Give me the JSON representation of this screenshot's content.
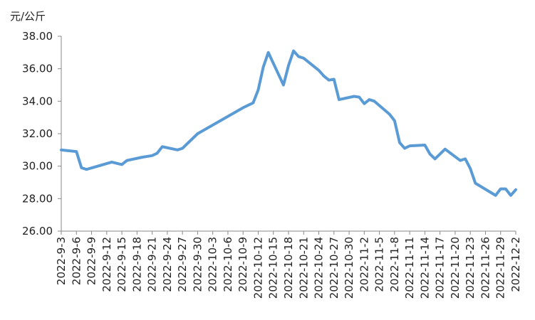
{
  "chart_data": {
    "type": "line",
    "y_label": "元/公斤",
    "x": [
      "2022-9-3",
      "2022-9-6",
      "2022-9-7",
      "2022-9-8",
      "2022-9-13",
      "2022-9-15",
      "2022-9-16",
      "2022-9-19",
      "2022-9-21",
      "2022-9-22",
      "2022-9-23",
      "2022-9-26",
      "2022-9-27",
      "2022-9-30",
      "2022-10-9",
      "2022-10-11",
      "2022-10-12",
      "2022-10-13",
      "2022-10-14",
      "2022-10-17",
      "2022-10-18",
      "2022-10-19",
      "2022-10-20",
      "2022-10-21",
      "2022-10-24",
      "2022-10-25",
      "2022-10-26",
      "2022-10-27",
      "2022-10-28",
      "2022-10-31",
      "2022-11-1",
      "2022-11-2",
      "2022-11-3",
      "2022-11-4",
      "2022-11-7",
      "2022-11-8",
      "2022-11-9",
      "2022-11-10",
      "2022-11-11",
      "2022-11-14",
      "2022-11-15",
      "2022-11-16",
      "2022-11-18",
      "2022-11-21",
      "2022-11-22",
      "2022-11-23",
      "2022-11-24",
      "2022-11-28",
      "2022-11-29",
      "2022-11-30",
      "2022-12-1",
      "2022-12-2"
    ],
    "series": [
      {
        "color": "#5b9bd5",
        "values": [
          31.0,
          30.9,
          29.9,
          29.8,
          30.25,
          30.1,
          30.35,
          30.55,
          30.65,
          30.8,
          31.2,
          31.0,
          31.1,
          32.0,
          33.6,
          33.9,
          34.7,
          36.1,
          37.0,
          35.0,
          36.2,
          37.1,
          36.75,
          36.65,
          35.9,
          35.55,
          35.3,
          35.35,
          34.1,
          34.3,
          34.25,
          33.85,
          34.1,
          34.0,
          33.2,
          32.8,
          31.45,
          31.1,
          31.25,
          31.3,
          30.75,
          30.45,
          31.05,
          30.35,
          30.45,
          29.85,
          28.95,
          28.2,
          28.6,
          28.6,
          28.2,
          28.55
        ]
      }
    ],
    "ylim": [
      26,
      38
    ],
    "yticks": [
      {
        "value": 26,
        "label": "26.00"
      },
      {
        "value": 28,
        "label": "28.00"
      },
      {
        "value": 30,
        "label": "30.00"
      },
      {
        "value": 32,
        "label": "32.00"
      },
      {
        "value": 34,
        "label": "34.00"
      },
      {
        "value": 36,
        "label": "36.00"
      },
      {
        "value": 38,
        "label": "38.00"
      }
    ],
    "xlim": [
      "2022-9-3",
      "2022-12-2"
    ],
    "xticks": [
      "2022-9-3",
      "2022-9-6",
      "2022-9-9",
      "2022-9-12",
      "2022-9-15",
      "2022-9-18",
      "2022-9-21",
      "2022-9-24",
      "2022-9-27",
      "2022-9-30",
      "2022-10-3",
      "2022-10-6",
      "2022-10-9",
      "2022-10-12",
      "2022-10-15",
      "2022-10-18",
      "2022-10-21",
      "2022-10-24",
      "2022-10-27",
      "2022-10-30",
      "2022-11-2",
      "2022-11-5",
      "2022-11-8",
      "2022-11-11",
      "2022-11-14",
      "2022-11-17",
      "2022-11-20",
      "2022-11-23",
      "2022-11-26",
      "2022-11-29",
      "2022-12-2"
    ],
    "grid": false
  }
}
